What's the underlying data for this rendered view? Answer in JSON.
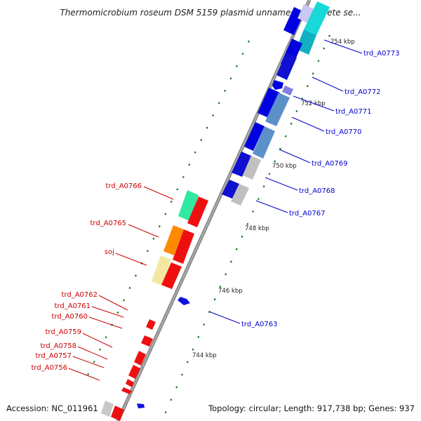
{
  "title": "Thermomicrobium roseum DSM 5159 plasmid unnamed, complete se...",
  "footer": {
    "accession": "Accession: NC_011961",
    "summary": "Topology: circular; Length: 917,738 bp; Genes: 937"
  },
  "colors": {
    "forward_label": "#0000cc",
    "reverse_label": "#cc0000",
    "backbone": "#8a8a8a",
    "tick": "#1a7a1a"
  },
  "scale_labels": [
    {
      "id": "tick-754",
      "text": "754 kbp"
    },
    {
      "id": "tick-752",
      "text": "752 kbp"
    },
    {
      "id": "tick-750",
      "text": "750 kbp"
    },
    {
      "id": "tick-748",
      "text": "748 kbp"
    },
    {
      "id": "tick-746",
      "text": "746 kbp"
    },
    {
      "id": "tick-744",
      "text": "744 kbp"
    }
  ],
  "genes_right": [
    {
      "id": "trd_A0773",
      "label": "trd_A0773"
    },
    {
      "id": "trd_A0772",
      "label": "trd_A0772"
    },
    {
      "id": "trd_A0771",
      "label": "trd_A0771"
    },
    {
      "id": "trd_A0770",
      "label": "trd_A0770"
    },
    {
      "id": "trd_A0769",
      "label": "trd_A0769"
    },
    {
      "id": "trd_A0768",
      "label": "trd_A0768"
    },
    {
      "id": "trd_A0767",
      "label": "trd_A0767"
    },
    {
      "id": "trd_A0763",
      "label": "trd_A0763"
    }
  ],
  "genes_left": [
    {
      "id": "trd_A0766",
      "label": "trd_A0766"
    },
    {
      "id": "trd_A0765",
      "label": "trd_A0765"
    },
    {
      "id": "soj",
      "label": "soj"
    },
    {
      "id": "trd_A0762",
      "label": "trd_A0762"
    },
    {
      "id": "trd_A0761",
      "label": "trd_A0761"
    },
    {
      "id": "trd_A0760",
      "label": "trd_A0760"
    },
    {
      "id": "trd_A0759",
      "label": "trd_A0759"
    },
    {
      "id": "trd_A0758",
      "label": "trd_A0758"
    },
    {
      "id": "trd_A0757",
      "label": "trd_A0757"
    },
    {
      "id": "trd_A0756",
      "label": "trd_A0756"
    }
  ]
}
